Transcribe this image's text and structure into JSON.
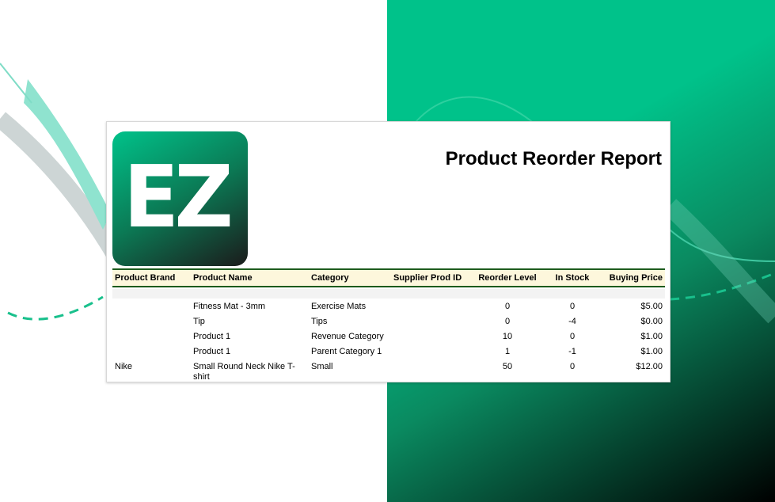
{
  "report": {
    "title": "Product Reorder Report",
    "logo_text": "EZ",
    "columns": [
      "Product Brand",
      "Product Name",
      "Category",
      "Supplier Prod ID",
      "Reorder Level",
      "In Stock",
      "Buying Price"
    ],
    "rows": [
      {
        "brand": "",
        "name": "Fitness Mat - 3mm",
        "category": "Exercise Mats",
        "supplier_id": "",
        "reorder": "0",
        "stock": "0",
        "price": "$5.00"
      },
      {
        "brand": "",
        "name": "Tip",
        "category": "Tips",
        "supplier_id": "",
        "reorder": "0",
        "stock": "-4",
        "price": "$0.00"
      },
      {
        "brand": "",
        "name": "Product 1",
        "category": "Revenue Category",
        "supplier_id": "",
        "reorder": "10",
        "stock": "0",
        "price": "$1.00"
      },
      {
        "brand": "",
        "name": "Product 1",
        "category": "Parent Category 1",
        "supplier_id": "",
        "reorder": "1",
        "stock": "-1",
        "price": "$1.00"
      },
      {
        "brand": "Nike",
        "name": "Small Round Neck Nike T-shirt",
        "category": "Small",
        "supplier_id": "",
        "reorder": "50",
        "stock": "0",
        "price": "$12.00"
      }
    ]
  },
  "colors": {
    "brand_green": "#00c28a",
    "header_rule": "#1d5c1d",
    "header_bg": "#fdf7dc"
  }
}
